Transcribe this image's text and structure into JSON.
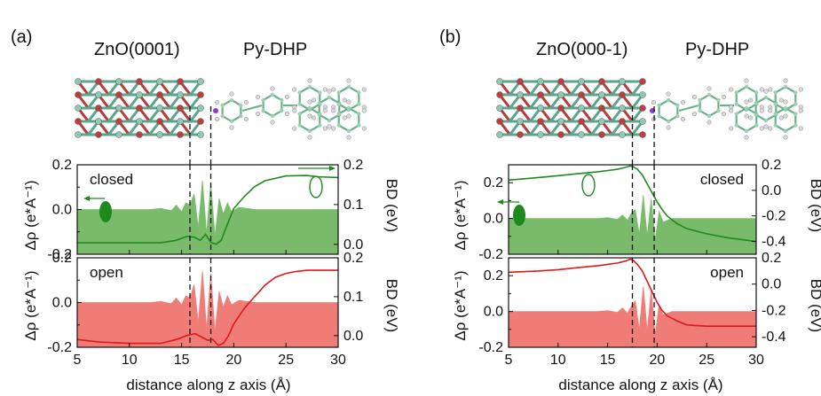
{
  "panels": [
    {
      "id": "a",
      "panel_label": "(a)",
      "left_title": "ZnO(0001)",
      "right_title": "Py-DHP",
      "top_state": "closed",
      "bottom_state": "open",
      "xlabel": "distance along z axis (Å)",
      "left_ylabel": "Δρ (e*A⁻¹)",
      "right_ylabel": "BD (eV)",
      "x_ticks": [
        "5",
        "10",
        "15",
        "20",
        "25",
        "30"
      ],
      "left_ticks": [
        "0.2",
        "0.0",
        "-0.2"
      ],
      "right_ticks": [
        "0.2",
        "0.1",
        "0.0"
      ],
      "dashed_lines_x": [
        15.8,
        17.8
      ]
    },
    {
      "id": "b",
      "panel_label": "(b)",
      "left_title": "ZnO(000-1)",
      "right_title": "Py-DHP",
      "top_state": "closed",
      "bottom_state": "open",
      "xlabel": "distance along z axis (Å)",
      "left_ylabel": "Δρ (e*A⁻¹)",
      "right_ylabel": "BD (eV)",
      "x_ticks": [
        "5",
        "10",
        "15",
        "20",
        "25",
        "30"
      ],
      "left_ticks": [
        "0.2",
        "0.0",
        "-0.2"
      ],
      "right_ticks": [
        "0.2",
        "0.0",
        "-0.2",
        "-0.4"
      ],
      "dashed_lines_x": [
        17.5,
        19.7
      ]
    }
  ],
  "colors": {
    "closed": "#1e8a1e",
    "closed_fill": "#79bb6a",
    "open": "#e01818",
    "open_fill": "#f07c78"
  },
  "chart_data": [
    {
      "type": "area",
      "panel": "a",
      "state": "closed",
      "xlim": [
        5,
        30
      ],
      "ylim_left": [
        -0.2,
        0.2
      ],
      "ylim_right": [
        -0.025,
        0.2
      ],
      "series": [
        {
          "axis": "left",
          "kind": "fill",
          "x": [
            5,
            12,
            13,
            14,
            14.5,
            15,
            15.4,
            15.8,
            16.2,
            16.6,
            17,
            17.4,
            17.8,
            18.2,
            18.6,
            19,
            19.4,
            19.8,
            20.5,
            22,
            30
          ],
          "y": [
            0.0,
            0.0,
            0.005,
            -0.005,
            0.02,
            -0.01,
            0.03,
            0.02,
            0.07,
            -0.08,
            0.13,
            -0.11,
            0.12,
            -0.12,
            0.05,
            -0.02,
            0.03,
            -0.01,
            0.01,
            0.0,
            0.0
          ]
        },
        {
          "axis": "right",
          "kind": "line",
          "x": [
            5,
            13,
            14.5,
            15.5,
            16.2,
            16.8,
            17.3,
            17.8,
            18.3,
            18.8,
            19.3,
            20,
            21,
            22,
            23,
            25,
            27,
            28,
            30
          ],
          "y": [
            0.004,
            0.004,
            0.01,
            0.02,
            0.018,
            0.01,
            0.025,
            0.005,
            0.0,
            0.01,
            0.045,
            0.09,
            0.12,
            0.145,
            0.16,
            0.172,
            0.173,
            0.17,
            0.168
          ]
        }
      ]
    },
    {
      "type": "area",
      "panel": "a",
      "state": "open",
      "xlim": [
        5,
        30
      ],
      "ylim_left": [
        -0.2,
        0.2
      ],
      "ylim_right": [
        -0.03,
        0.2
      ],
      "series": [
        {
          "axis": "left",
          "kind": "fill",
          "x": [
            5,
            12,
            13,
            14,
            14.5,
            15,
            15.4,
            15.8,
            16.2,
            16.6,
            17,
            17.4,
            17.8,
            18.2,
            18.6,
            19,
            19.4,
            19.8,
            20.5,
            22,
            30
          ],
          "y": [
            0.0,
            0.0,
            0.005,
            -0.005,
            0.02,
            -0.01,
            0.03,
            0.02,
            0.08,
            -0.09,
            0.14,
            -0.12,
            0.13,
            -0.13,
            0.05,
            -0.02,
            0.03,
            -0.01,
            0.01,
            0.0,
            0.0
          ]
        },
        {
          "axis": "right",
          "kind": "line",
          "x": [
            5,
            7,
            10,
            13,
            14.5,
            15.5,
            16.3,
            17,
            17.5,
            18,
            18.5,
            19,
            19.5,
            20,
            21,
            22,
            23,
            24,
            25,
            26,
            27,
            30
          ],
          "y": [
            -0.01,
            -0.016,
            -0.02,
            -0.02,
            -0.01,
            0.0,
            0.005,
            -0.005,
            -0.012,
            -0.01,
            -0.025,
            -0.02,
            0.0,
            0.03,
            0.07,
            0.1,
            0.13,
            0.15,
            0.16,
            0.165,
            0.168,
            0.168
          ]
        }
      ]
    },
    {
      "type": "area",
      "panel": "b",
      "state": "closed",
      "xlim": [
        5,
        30
      ],
      "ylim_left": [
        -0.2,
        0.3
      ],
      "ylim_right": [
        -0.5,
        0.2
      ],
      "series": [
        {
          "axis": "left",
          "kind": "fill",
          "x": [
            5,
            14,
            15,
            16,
            16.5,
            17,
            17.4,
            17.8,
            18.2,
            18.6,
            19,
            19.4,
            19.8,
            20.2,
            20.6,
            21.5,
            30
          ],
          "y": [
            0.0,
            0.0,
            0.005,
            -0.005,
            0.02,
            -0.01,
            0.03,
            0.05,
            -0.09,
            0.13,
            -0.1,
            0.11,
            -0.12,
            0.04,
            -0.02,
            0.0,
            0.0
          ]
        },
        {
          "axis": "right",
          "kind": "line",
          "x": [
            5,
            8,
            10,
            12,
            14,
            15,
            16,
            16.8,
            17.3,
            17.6,
            18,
            18.5,
            19,
            19.5,
            20,
            20.5,
            21,
            22,
            23,
            25,
            27,
            30
          ],
          "y": [
            0.08,
            0.1,
            0.115,
            0.13,
            0.145,
            0.155,
            0.165,
            0.18,
            0.19,
            0.185,
            0.165,
            0.12,
            0.05,
            -0.02,
            -0.09,
            -0.15,
            -0.2,
            -0.26,
            -0.3,
            -0.34,
            -0.37,
            -0.4
          ]
        }
      ]
    },
    {
      "type": "area",
      "panel": "b",
      "state": "open",
      "xlim": [
        5,
        30
      ],
      "ylim_left": [
        -0.2,
        0.3
      ],
      "ylim_right": [
        -0.48,
        0.2
      ],
      "series": [
        {
          "axis": "left",
          "kind": "fill",
          "x": [
            5,
            14,
            15,
            16,
            16.5,
            17,
            17.4,
            17.8,
            18.2,
            18.6,
            19,
            19.4,
            19.8,
            20.2,
            20.6,
            21.5,
            30
          ],
          "y": [
            0.0,
            0.0,
            0.005,
            -0.005,
            0.02,
            -0.01,
            0.03,
            0.06,
            -0.1,
            0.14,
            -0.11,
            0.12,
            -0.13,
            0.04,
            -0.02,
            0.0,
            0.0
          ]
        },
        {
          "axis": "right",
          "kind": "line",
          "x": [
            5,
            8,
            10,
            12,
            14,
            15,
            16,
            16.8,
            17.3,
            17.6,
            18,
            18.5,
            19,
            19.5,
            20,
            20.5,
            21,
            22,
            23,
            25,
            27,
            30
          ],
          "y": [
            0.09,
            0.1,
            0.11,
            0.125,
            0.14,
            0.15,
            0.16,
            0.175,
            0.19,
            0.18,
            0.15,
            0.1,
            0.02,
            -0.06,
            -0.14,
            -0.2,
            -0.24,
            -0.28,
            -0.31,
            -0.32,
            -0.32,
            -0.32
          ]
        }
      ]
    }
  ]
}
